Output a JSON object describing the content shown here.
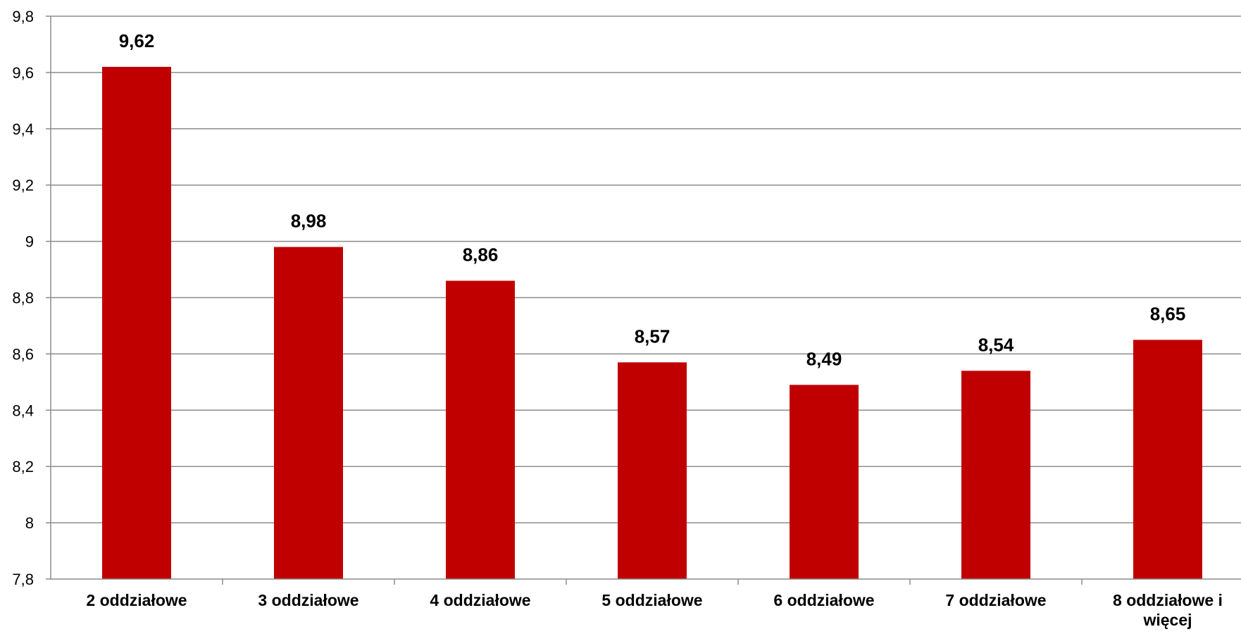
{
  "chart_data": {
    "type": "bar",
    "categories": [
      "2 oddziałowe",
      "3 oddziałowe",
      "4 oddziałowe",
      "5 oddziałowe",
      "6 oddziałowe",
      "7 oddziałowe",
      "8 oddziałowe i więcej"
    ],
    "values": [
      9.62,
      8.98,
      8.86,
      8.57,
      8.49,
      8.54,
      8.65
    ],
    "value_labels": [
      "9,62",
      "8,98",
      "8,86",
      "8,57",
      "8,49",
      "8,54",
      "8,65"
    ],
    "title": "",
    "xlabel": "",
    "ylabel": "",
    "ylim": [
      7.8,
      9.8
    ],
    "yticks": [
      7.8,
      8,
      8.2,
      8.4,
      8.6,
      8.8,
      9,
      9.2,
      9.4,
      9.6,
      9.8
    ],
    "ytick_labels": [
      "7,8",
      "8",
      "8,2",
      "8,4",
      "8,6",
      "8,8",
      "9",
      "9,2",
      "9,4",
      "9,6",
      "9,8"
    ],
    "grid": true,
    "legend": "none",
    "bar_color": "#c00000"
  }
}
